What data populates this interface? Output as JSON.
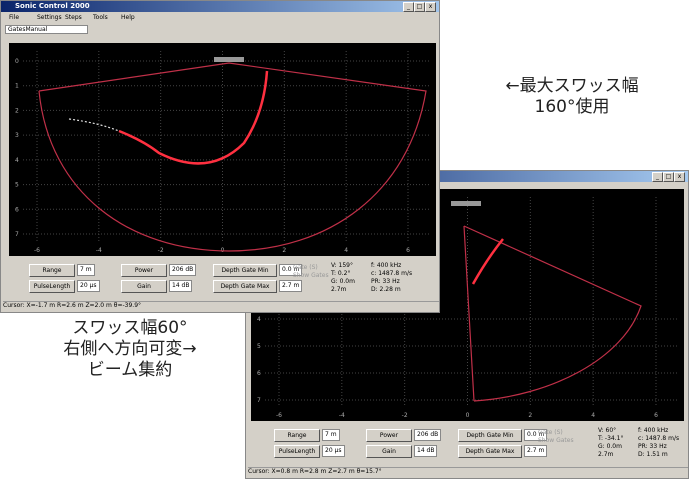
{
  "annotations": {
    "top": [
      "←最大スワッス幅",
      "160°使用"
    ],
    "bottom": [
      "スワッス幅60°",
      "右側へ方向可変→",
      "ビーム集約"
    ]
  },
  "windows": [
    {
      "title": "Sonic Control 2000",
      "menu": [
        "File",
        "Settings",
        "Steps",
        "Tools",
        "Help"
      ],
      "tab": "GatesManual",
      "x_ticks": [
        "-6",
        "-4",
        "-2",
        "0",
        "2",
        "4",
        "6"
      ],
      "y_ticks": [
        "0",
        "1",
        "2",
        "3",
        "4",
        "5",
        "6",
        "7"
      ],
      "buttons": [
        {
          "label": "Range",
          "value": "7 m"
        },
        {
          "label": "Power",
          "value": "206 dB"
        },
        {
          "label": "Depth Gate Min",
          "value": "0.0 m"
        },
        {
          "label": "PulseLength",
          "value": "20 µs"
        },
        {
          "label": "Gain",
          "value": "14 dB"
        },
        {
          "label": "Depth Gate Max",
          "value": "2.7 m"
        }
      ],
      "checkboxes": [
        "Gate (S)",
        "Show Gates"
      ],
      "readouts": [
        "V: 159°",
        "f: 400 kHz",
        "T: 0.2°",
        "c: 1487.8 m/s",
        "G: 0.0m",
        "PR: 33 Hz",
        "2.7m",
        "D: 2.28 m"
      ],
      "cursor": "Cursor: X=-1.7 m R=2.6 m Z=2.0 m θ=-39.9°"
    },
    {
      "x_ticks": [
        "-6",
        "-4",
        "-2",
        "0",
        "2",
        "4",
        "6"
      ],
      "y_ticks": [
        "4",
        "5",
        "6",
        "7"
      ],
      "buttons": [
        {
          "label": "Range",
          "value": "7 m"
        },
        {
          "label": "Power",
          "value": "206 dB"
        },
        {
          "label": "Depth Gate Min",
          "value": "0.0 m"
        },
        {
          "label": "PulseLength",
          "value": "20 µs"
        },
        {
          "label": "Gain",
          "value": "14 dB"
        },
        {
          "label": "Depth Gate Max",
          "value": "2.7 m"
        }
      ],
      "checkboxes": [
        "Gate (S)",
        "Show Gates"
      ],
      "readouts": [
        "V: 60°",
        "f: 400 kHz",
        "T: -34.1°",
        "c: 1487.8 m/s",
        "G: 0.0m",
        "PR: 33 Hz",
        "2.7m",
        "D: 1.51 m"
      ],
      "cursor": "Cursor: X=0.8 m R=2.8 m Z=2.7 m θ=15.7°"
    }
  ]
}
